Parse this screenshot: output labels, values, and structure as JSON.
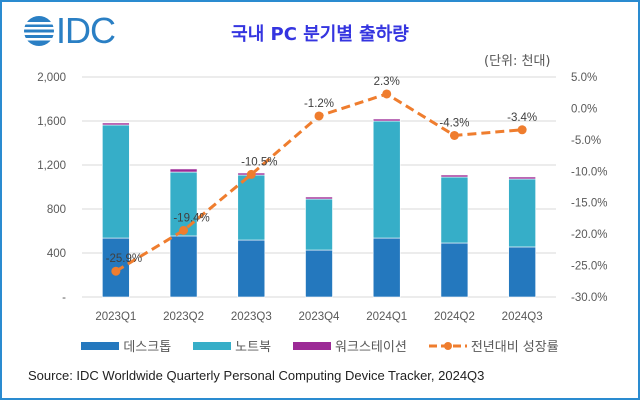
{
  "title": "국내 PC 분기별 출하량",
  "unit_note": "(단위: 천대)",
  "logo_text": "IDC",
  "source": "Source: IDC Worldwide Quarterly Personal Computing Device Tracker, 2024Q3",
  "colors": {
    "desktop": "#2478be",
    "notebook": "#36aec8",
    "workstation": "#9c2a96",
    "growth": "#ef7d2e",
    "frame": "#2a8bd0",
    "title": "#3535e0"
  },
  "chart_data": {
    "type": "bar",
    "stacked": true,
    "title": "국내 PC 분기별 출하량",
    "categories": [
      "2023Q1",
      "2023Q2",
      "2023Q3",
      "2023Q4",
      "2024Q1",
      "2024Q2",
      "2024Q3"
    ],
    "series": [
      {
        "name": "데스크톱",
        "values": [
          536,
          555,
          518,
          427,
          536,
          491,
          455
        ]
      },
      {
        "name": "노트북",
        "values": [
          1028,
          581,
          591,
          464,
          1064,
          600,
          618
        ]
      },
      {
        "name": "워크스테이션",
        "values": [
          18,
          28,
          18,
          18,
          18,
          18,
          18
        ]
      }
    ],
    "line_series": {
      "name": "전년대비 성장률",
      "values": [
        -25.9,
        -19.4,
        -10.5,
        -1.2,
        2.3,
        -4.3,
        -3.4
      ],
      "labels": [
        "-25.9%",
        "-19.4%",
        "-10.5%",
        "-1.2%",
        "2.3%",
        "-4.3%",
        "-3.4%"
      ],
      "axis": "right"
    },
    "ylim": [
      0,
      2000
    ],
    "y_ticks": [
      "-",
      "400",
      "800",
      "1,200",
      "1,600",
      "2,000"
    ],
    "y2lim": [
      -30,
      5
    ],
    "y2_ticks": [
      "-30.0%",
      "-25.0%",
      "-20.0%",
      "-15.0%",
      "-10.0%",
      "-5.0%",
      "0.0%",
      "5.0%"
    ],
    "grid": true,
    "legend_position": "bottom"
  }
}
